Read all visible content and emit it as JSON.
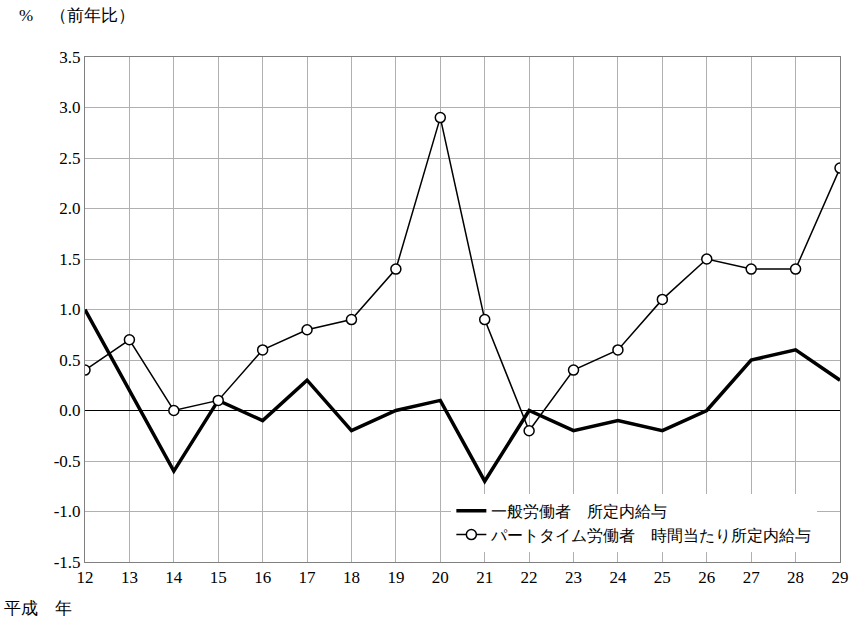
{
  "chart_data": {
    "type": "line",
    "y_label": "%　（前年比）",
    "x_label": "平成　年",
    "x": [
      12,
      13,
      14,
      15,
      16,
      17,
      18,
      19,
      20,
      21,
      22,
      23,
      24,
      25,
      26,
      27,
      28,
      29
    ],
    "series": [
      {
        "name": "一般労働者　所定内給与",
        "color": "#000000",
        "marker": "none",
        "line_style": "solid",
        "values": [
          1.0,
          0.2,
          -0.6,
          0.1,
          -0.1,
          0.3,
          -0.2,
          0.0,
          0.1,
          -0.7,
          0.0,
          -0.2,
          -0.1,
          -0.2,
          0.0,
          0.5,
          0.6,
          0.3
        ]
      },
      {
        "name": "パートタイム労働者　時間当たり所定内給与",
        "color": "#000000",
        "marker": "circle-open",
        "line_style": "solid",
        "values": [
          0.4,
          0.7,
          0.0,
          0.1,
          0.6,
          0.8,
          0.9,
          1.4,
          2.9,
          0.9,
          -0.2,
          0.4,
          0.6,
          1.1,
          1.5,
          1.4,
          1.4,
          2.4
        ]
      }
    ],
    "xlim": [
      12,
      29
    ],
    "xticks": [
      12,
      13,
      14,
      15,
      16,
      17,
      18,
      19,
      20,
      21,
      22,
      23,
      24,
      25,
      26,
      27,
      28,
      29
    ],
    "ylim": [
      -1.5,
      3.5
    ],
    "yticks": [
      -1.5,
      {
        "value": -1,
        "label": "-1.0"
      },
      -0.5,
      {
        "value": 0,
        "label": "0.0"
      },
      0.5,
      {
        "value": 1,
        "label": "1.0"
      },
      1.5,
      {
        "value": 2,
        "label": "2.0"
      },
      2.5,
      {
        "value": 3,
        "label": "3.0"
      },
      3.5
    ],
    "grid": true,
    "legend": "lower right"
  }
}
